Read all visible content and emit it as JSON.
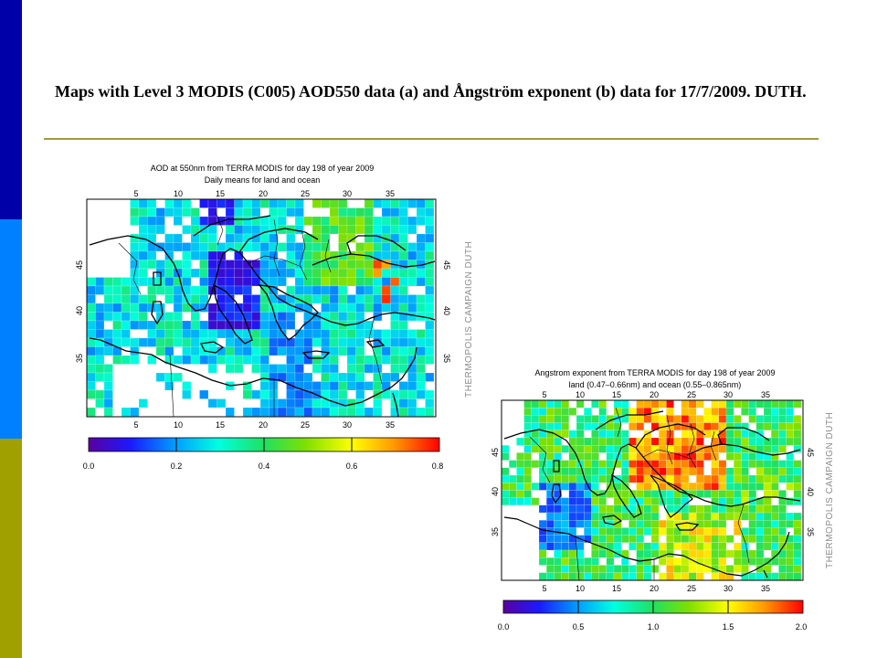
{
  "slide": {
    "title": "Maps with Level 3 MODIS (C005) AOD550 data (a) and Ångström exponent (b) data for 17/7/2009.  DUTH.",
    "colors": {
      "sidebar_top": "#0000a8",
      "sidebar_middle": "#0080ff",
      "sidebar_bottom": "#a0a000",
      "title_rule": "#a09a3c"
    }
  },
  "maps": [
    {
      "id": "a",
      "title_line1": "AOD at 550nm from TERRA MODIS for day 198 of year 2009",
      "title_line2": "Daily means for land and ocean",
      "watermark": "THERMOPOLIS CAMPAIGN DUTH",
      "lon_labels": [
        "5",
        "10",
        "15",
        "20",
        "25",
        "30",
        "35"
      ],
      "lat_labels": [
        "45",
        "40",
        "35"
      ],
      "colorbar_labels": [
        "0.0",
        "0.2",
        "0.4",
        "0.6",
        "0.8"
      ]
    },
    {
      "id": "b",
      "title_line1": "Angstrom exponent from TERRA MODIS for day 198 of year 2009",
      "title_line2": "land (0.47–0.66nm) and ocean (0.55–0.865nm)",
      "watermark": "THERMOPOLIS CAMPAIGN DUTH",
      "lon_labels": [
        "5",
        "10",
        "15",
        "20",
        "25",
        "30",
        "35"
      ],
      "lat_labels": [
        "45",
        "40",
        "35"
      ],
      "colorbar_labels": [
        "0.0",
        "0.5",
        "1.0",
        "1.5",
        "2.0"
      ]
    }
  ]
}
